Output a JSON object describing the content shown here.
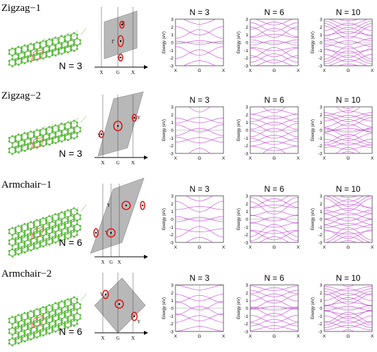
{
  "rows": [
    {
      "title": "Zigzag−1",
      "structure_label": "N = 3",
      "bz": {
        "gamma_label": "Γ",
        "y_top_label": "Y",
        "y_bottom_label": "Y",
        "axis_labels": [
          "X",
          "G",
          "X"
        ]
      },
      "plots": [
        {
          "title": "N = 3",
          "bands": 8
        },
        {
          "title": "N = 6",
          "bands": 14
        },
        {
          "title": "N = 10",
          "bands": 20
        }
      ]
    },
    {
      "title": "Zigzag−2",
      "structure_label": "N = 3",
      "bz": {
        "y_left_label": "Y",
        "y_right_label": "Y",
        "axis_labels": [
          "X",
          "G",
          "X"
        ]
      },
      "plots": [
        {
          "title": "N = 3",
          "bands": 8
        },
        {
          "title": "N = 6",
          "bands": 14
        },
        {
          "title": "N = 10",
          "bands": 20
        }
      ]
    },
    {
      "title": "Armchair−1",
      "structure_label": "N = 6",
      "bz": {
        "y_top_label": "Y",
        "y_bottom_label": "Y",
        "axis_labels": [
          "X",
          "G",
          "X"
        ]
      },
      "plots": [
        {
          "title": "N = 3",
          "bands": 8
        },
        {
          "title": "N = 6",
          "bands": 14
        },
        {
          "title": "N = 10",
          "bands": 20
        }
      ]
    },
    {
      "title": "Armchair−2",
      "structure_label": "N = 6",
      "bz": {
        "y_left_label": "Y",
        "y_right_label": "Y",
        "axis_labels": [
          "X",
          "G",
          "X"
        ]
      },
      "plots": [
        {
          "title": "N = 3",
          "bands": 8
        },
        {
          "title": "N = 6",
          "bands": 14
        },
        {
          "title": "N = 10",
          "bands": 20
        }
      ]
    }
  ],
  "band_plot": {
    "ylabel": "Energy (eV)",
    "ylim": [
      -3,
      3
    ],
    "yticks": [
      "3",
      "2",
      "1",
      "0",
      "-1",
      "-2",
      "-3"
    ],
    "xticks": [
      "X",
      "G",
      "X"
    ]
  },
  "colors": {
    "band": "#c040d0",
    "atom": "#5cbf3c",
    "bond": "#3a8a25",
    "dirac_loop": "#e01818",
    "bz_fill": "#b8b8b8",
    "unit_cell": "#e07060"
  }
}
